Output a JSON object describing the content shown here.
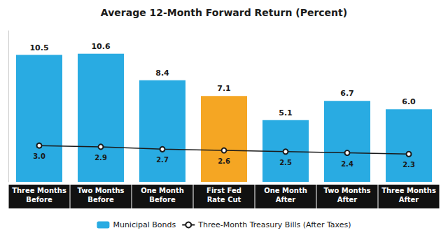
{
  "chart_data": {
    "type": "bar",
    "title": "Average 12-Month Forward Return (Percent)",
    "categories": [
      "Three Months\nBefore",
      "Two Months\nBefore",
      "One Month\nBefore",
      "First Fed\nRate Cut",
      "One Month\nAfter",
      "Two Months\nAfter",
      "Three Months\nAfter"
    ],
    "series": [
      {
        "name": "Municipal Bonds",
        "type": "bar",
        "color": "#29ABE2",
        "colors": [
          "#29ABE2",
          "#29ABE2",
          "#29ABE2",
          "#F5A623",
          "#29ABE2",
          "#29ABE2",
          "#29ABE2"
        ],
        "values": [
          10.5,
          10.6,
          8.4,
          7.1,
          5.1,
          6.7,
          6.0
        ],
        "value_labels": [
          "10.5",
          "10.6",
          "8.4",
          "7.1",
          "5.1",
          "6.7",
          "6.0"
        ]
      },
      {
        "name": "Three-Month Treasury Bills (After Taxes)",
        "type": "line",
        "color": "#1A1A1A",
        "marker": "circle",
        "values": [
          3.0,
          2.9,
          2.7,
          2.6,
          2.5,
          2.4,
          2.3
        ],
        "value_labels": [
          "3.0",
          "2.9",
          "2.7",
          "2.6",
          "2.5",
          "2.4",
          "2.3"
        ]
      }
    ],
    "ylim": [
      0,
      12.5
    ],
    "data_labels": true,
    "tick_labels": "x",
    "grid": false,
    "legend": "bottom"
  }
}
